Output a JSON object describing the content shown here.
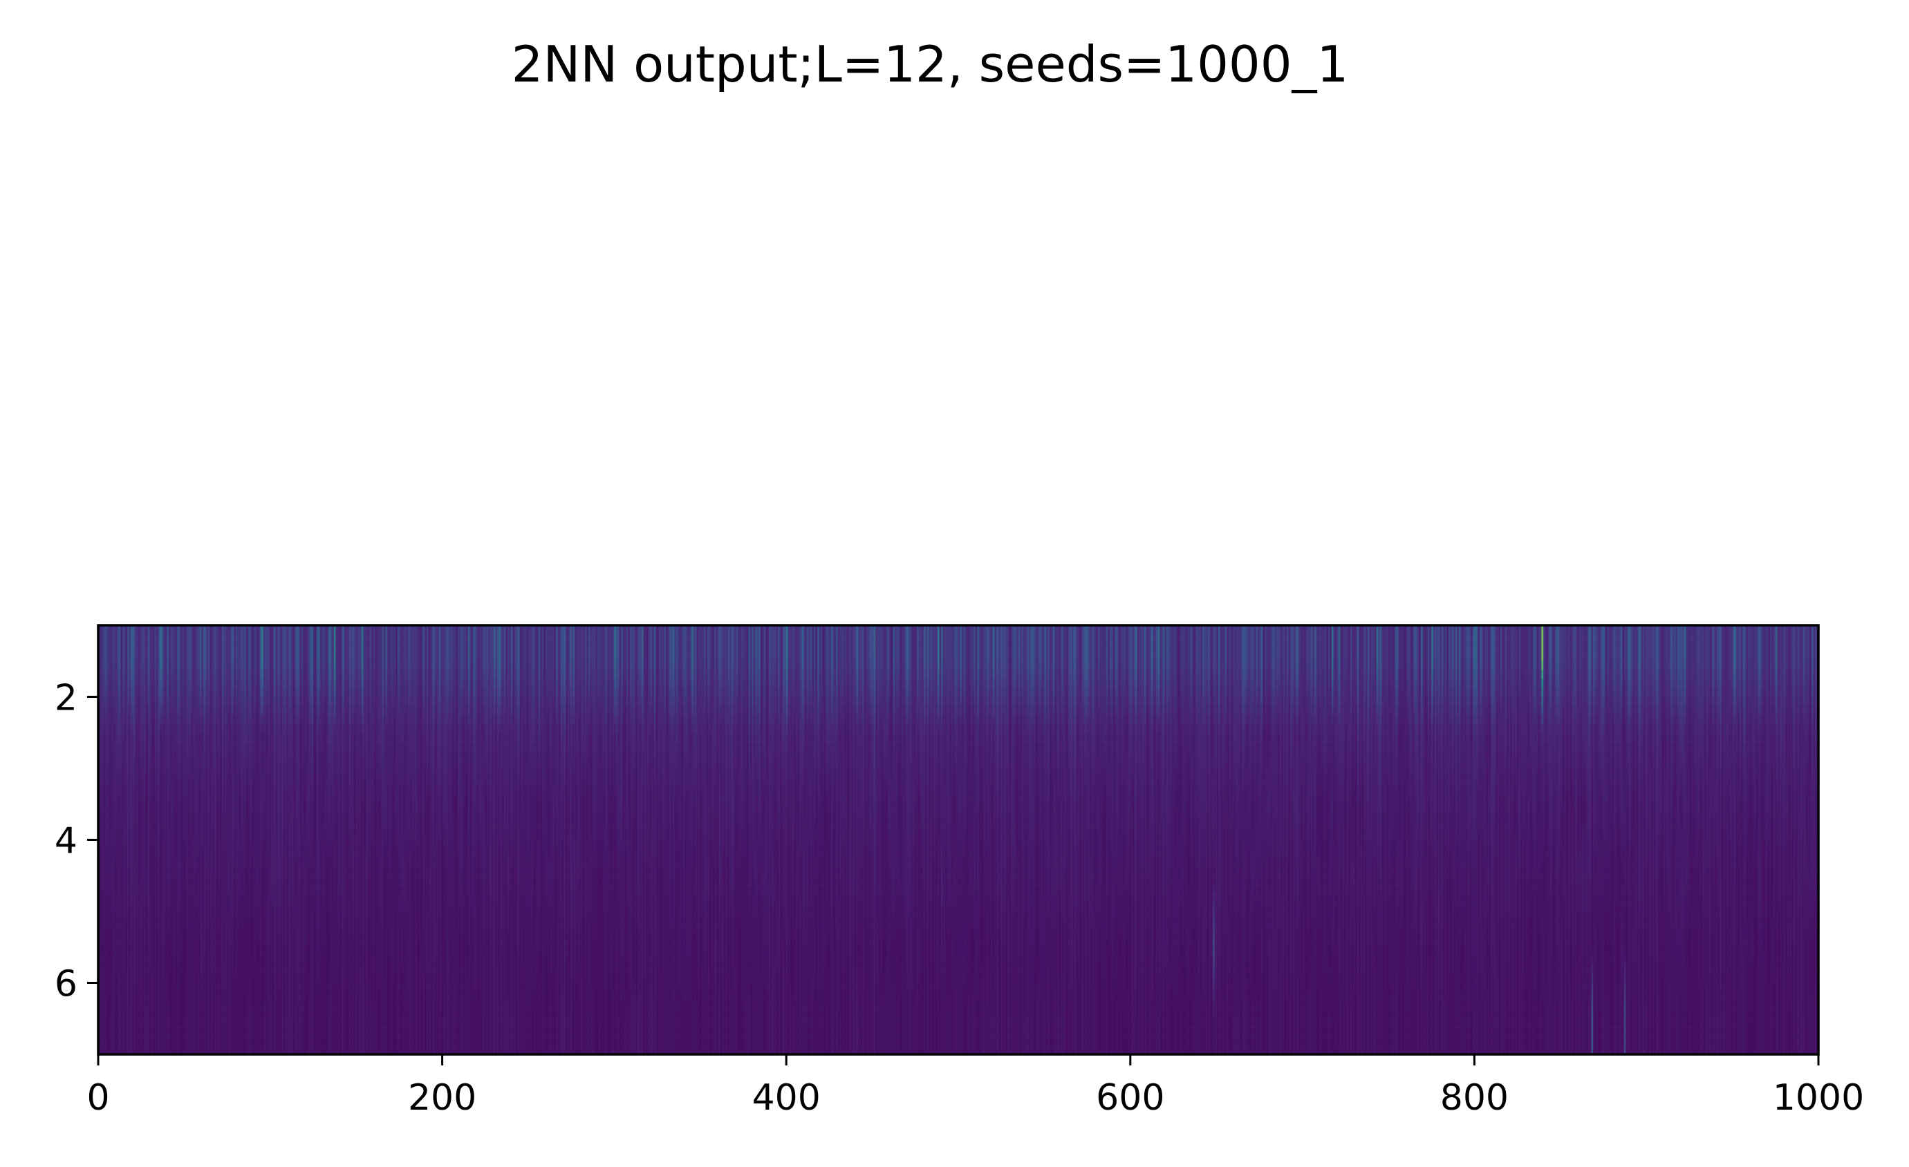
{
  "chart_data": {
    "type": "heatmap",
    "title": "2NN output;L=12, seeds=1000_1",
    "xlabel": "",
    "ylabel": "",
    "x_ticks": [
      0,
      200,
      400,
      600,
      800,
      1000
    ],
    "y_ticks": [
      2,
      4,
      6
    ],
    "xlim": [
      0,
      1000
    ],
    "ylim": [
      7,
      1
    ],
    "rows": 6,
    "columns": 1000,
    "colormap": "viridis",
    "grid": false,
    "legend": "none",
    "row_mean_intensity": [
      0.16,
      0.11,
      0.085,
      0.07,
      0.06,
      0.055
    ],
    "highlight_columns": [
      {
        "x": 36,
        "row": 1,
        "value": 0.45
      },
      {
        "x": 95,
        "row": 1,
        "value": 0.5
      },
      {
        "x": 137,
        "row": 1,
        "value": 0.55
      },
      {
        "x": 153,
        "row": 1,
        "value": 0.48
      },
      {
        "x": 233,
        "row": 1,
        "value": 0.42
      },
      {
        "x": 300,
        "row": 1,
        "value": 0.46
      },
      {
        "x": 345,
        "row": 1,
        "value": 0.44
      },
      {
        "x": 400,
        "row": 1,
        "value": 0.47
      },
      {
        "x": 488,
        "row": 1,
        "value": 0.5
      },
      {
        "x": 520,
        "row": 1,
        "value": 0.45
      },
      {
        "x": 616,
        "row": 1,
        "value": 0.43
      },
      {
        "x": 717,
        "row": 1,
        "value": 0.48
      },
      {
        "x": 743,
        "row": 1,
        "value": 0.46
      },
      {
        "x": 775,
        "row": 1,
        "value": 0.5
      },
      {
        "x": 839,
        "row": 1,
        "value": 0.85
      },
      {
        "x": 951,
        "row": 1,
        "value": 0.44
      },
      {
        "x": 975,
        "row": 1,
        "value": 0.42
      },
      {
        "x": 648,
        "row": 5,
        "value": 0.3
      },
      {
        "x": 868,
        "row": 6,
        "value": 0.35
      },
      {
        "x": 887,
        "row": 6,
        "value": 0.3
      }
    ]
  }
}
